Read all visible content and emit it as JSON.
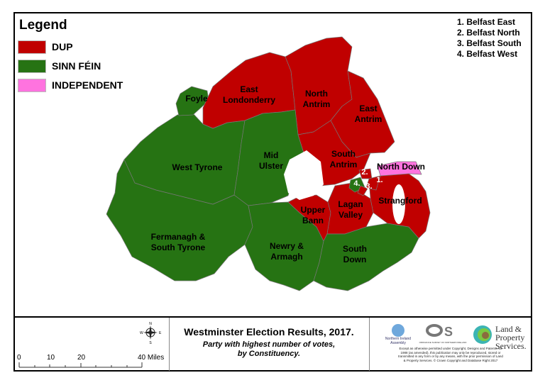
{
  "legend": {
    "title": "Legend",
    "items": [
      {
        "label": "DUP",
        "color": "#c00000"
      },
      {
        "label": "SINN FÉIN",
        "color": "#267313"
      },
      {
        "label": "INDEPENDENT",
        "color": "#ff73df"
      }
    ]
  },
  "belfast_key": [
    "1. Belfast East",
    "2. Belfast North",
    "3. Belfast South",
    "4. Belfast West"
  ],
  "constituencies": [
    {
      "name": "Foyle",
      "party": "SINN FÉIN"
    },
    {
      "name": "East Londonderry",
      "party": "DUP"
    },
    {
      "name": "North Antrim",
      "party": "DUP"
    },
    {
      "name": "East Antrim",
      "party": "DUP"
    },
    {
      "name": "South Antrim",
      "party": "DUP"
    },
    {
      "name": "West Tyrone",
      "party": "SINN FÉIN"
    },
    {
      "name": "Mid Ulster",
      "party": "SINN FÉIN"
    },
    {
      "name": "Fermanagh & South Tyrone",
      "party": "SINN FÉIN"
    },
    {
      "name": "Newry & Armagh",
      "party": "SINN FÉIN"
    },
    {
      "name": "Upper Bann",
      "party": "DUP"
    },
    {
      "name": "Lagan Valley",
      "party": "DUP"
    },
    {
      "name": "South Down",
      "party": "SINN FÉIN"
    },
    {
      "name": "Strangford",
      "party": "DUP"
    },
    {
      "name": "North Down",
      "party": "INDEPENDENT"
    },
    {
      "name": "Belfast East",
      "party": "DUP"
    },
    {
      "name": "Belfast North",
      "party": "DUP"
    },
    {
      "name": "Belfast South",
      "party": "DUP"
    },
    {
      "name": "Belfast West",
      "party": "SINN FÉIN"
    }
  ],
  "labels": {
    "foyle": "Foyle",
    "east_londonderry": [
      "East",
      "Londonderry"
    ],
    "north_antrim": [
      "North",
      "Antrim"
    ],
    "east_antrim": [
      "East",
      "Antrim"
    ],
    "south_antrim": [
      "South",
      "Antrim"
    ],
    "west_tyrone": "West Tyrone",
    "mid_ulster": [
      "Mid",
      "Ulster"
    ],
    "fermanagh": [
      "Fermanagh &",
      "South Tyrone"
    ],
    "newry": [
      "Newry &",
      "Armagh"
    ],
    "upper_bann": [
      "Upper",
      "Bann"
    ],
    "lagan_valley": [
      "Lagan",
      "Valley"
    ],
    "south_down": [
      "South",
      "Down"
    ],
    "strangford": "Strangford",
    "north_down": "North Down",
    "b1": "1.",
    "b2": "2.",
    "b3": "3.",
    "b4": "4."
  },
  "footer": {
    "title": "Westminster Election Results, 2017.",
    "subtitle_1": "Party with highest number of votes,",
    "subtitle_2": "by Constituency.",
    "scale": {
      "ticks": [
        "0",
        "10",
        "20",
        "40 Miles"
      ]
    },
    "compass": {
      "n": "N",
      "s": "S",
      "e": "E",
      "w": "W"
    },
    "logos": {
      "nia": "Northern Ireland Assembly",
      "os": "ORDNANCE SURVEY OF NORTHERN IRELAND",
      "lps": [
        "Land &",
        "Property",
        "Services."
      ]
    },
    "copyright": "Except as otherwise permitted under Copyright, Designs and Patents Act 1988 (as amended), this publication may only be reproduced, stored or transmitted in any form or by any means, with the prior permission of Land & Property Services. © Crown Copyright and Database Right 2017"
  }
}
